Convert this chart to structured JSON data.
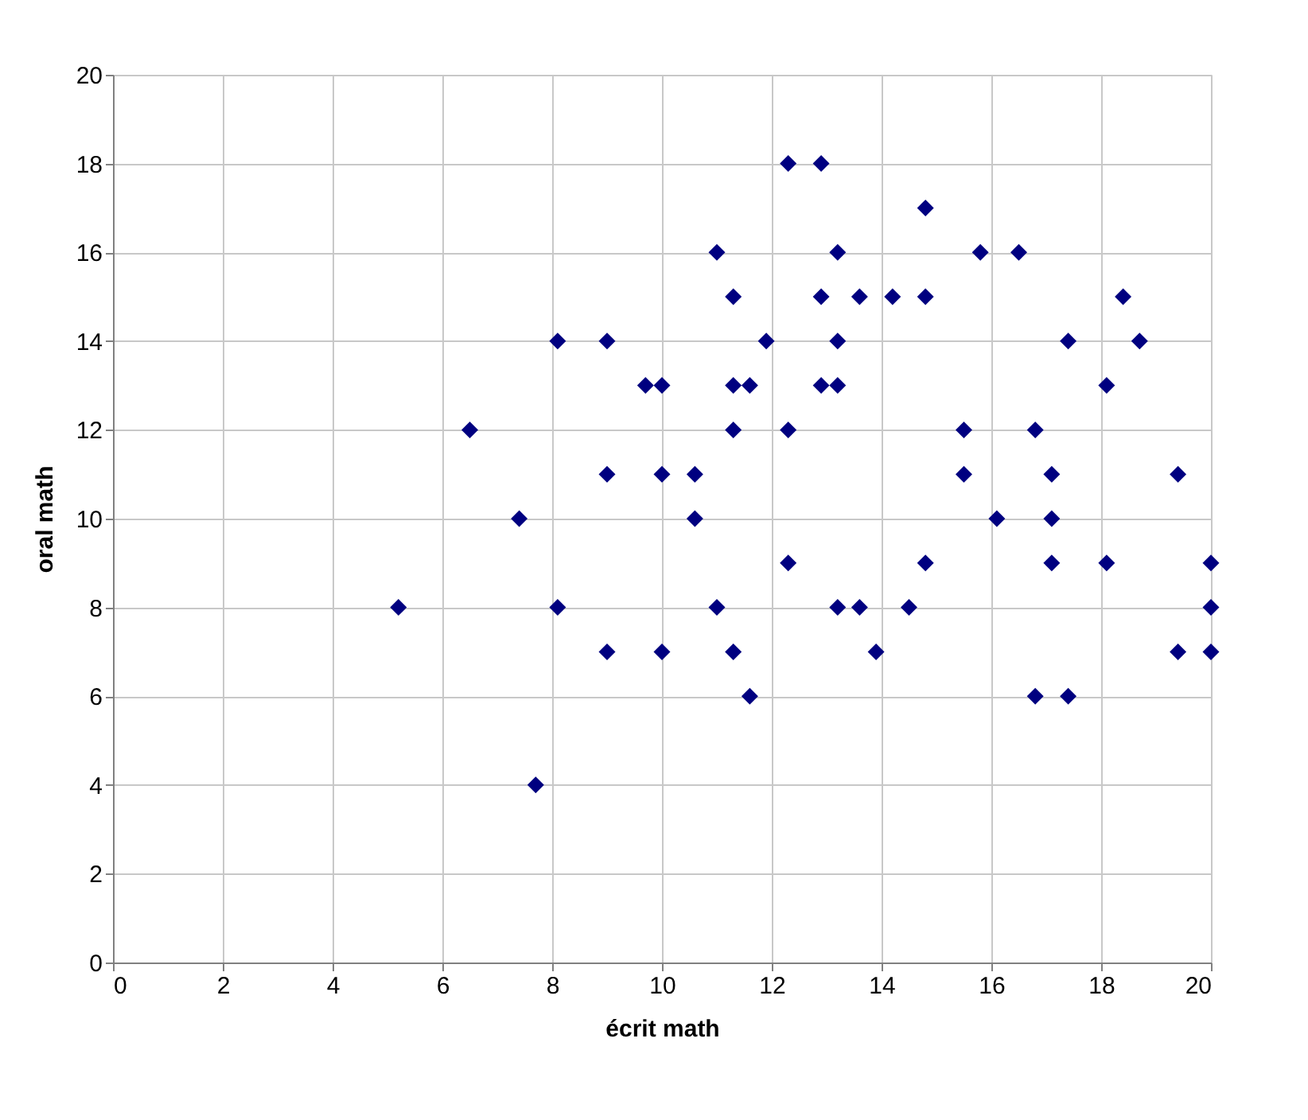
{
  "chart_data": {
    "type": "scatter",
    "xlabel": "écrit math",
    "ylabel": "oral math",
    "x": [
      5.2,
      6.5,
      7.4,
      7.7,
      8.1,
      8.1,
      9.0,
      9.0,
      9.0,
      9.7,
      10.0,
      10.0,
      10.0,
      10.6,
      10.6,
      11.0,
      11.0,
      11.3,
      11.3,
      11.3,
      11.3,
      11.6,
      11.6,
      11.9,
      12.3,
      12.3,
      12.3,
      12.9,
      12.9,
      12.9,
      13.2,
      13.2,
      13.2,
      13.2,
      13.6,
      13.6,
      13.9,
      14.2,
      14.5,
      14.8,
      14.8,
      14.8,
      15.5,
      15.5,
      15.8,
      16.1,
      16.5,
      16.8,
      16.8,
      17.1,
      17.1,
      17.1,
      17.4,
      17.4,
      18.1,
      18.1,
      18.4,
      18.7,
      19.4,
      19.4,
      20.0,
      20.0,
      20.0
    ],
    "series": [
      {
        "color": "#000080",
        "values": [
          8,
          12,
          10,
          4,
          14,
          8,
          14,
          11,
          7,
          13,
          13,
          11,
          7,
          11,
          10,
          16,
          8,
          15,
          13,
          12,
          7,
          13,
          6,
          14,
          18,
          12,
          9,
          18,
          15,
          13,
          16,
          14,
          13,
          8,
          15,
          8,
          7,
          15,
          8,
          17,
          15,
          9,
          12,
          11,
          16,
          10,
          16,
          12,
          6,
          11,
          10,
          9,
          14,
          6,
          13,
          9,
          15,
          14,
          11,
          7,
          9,
          8,
          7
        ]
      }
    ],
    "xlim": [
      0,
      20
    ],
    "xticks": [
      0,
      2,
      4,
      6,
      8,
      10,
      12,
      14,
      16,
      18,
      20
    ],
    "ylim": [
      0,
      20
    ],
    "yticks": [
      0,
      2,
      4,
      6,
      8,
      10,
      12,
      14,
      16,
      18,
      20
    ],
    "grid": true,
    "marker": "diamond"
  }
}
